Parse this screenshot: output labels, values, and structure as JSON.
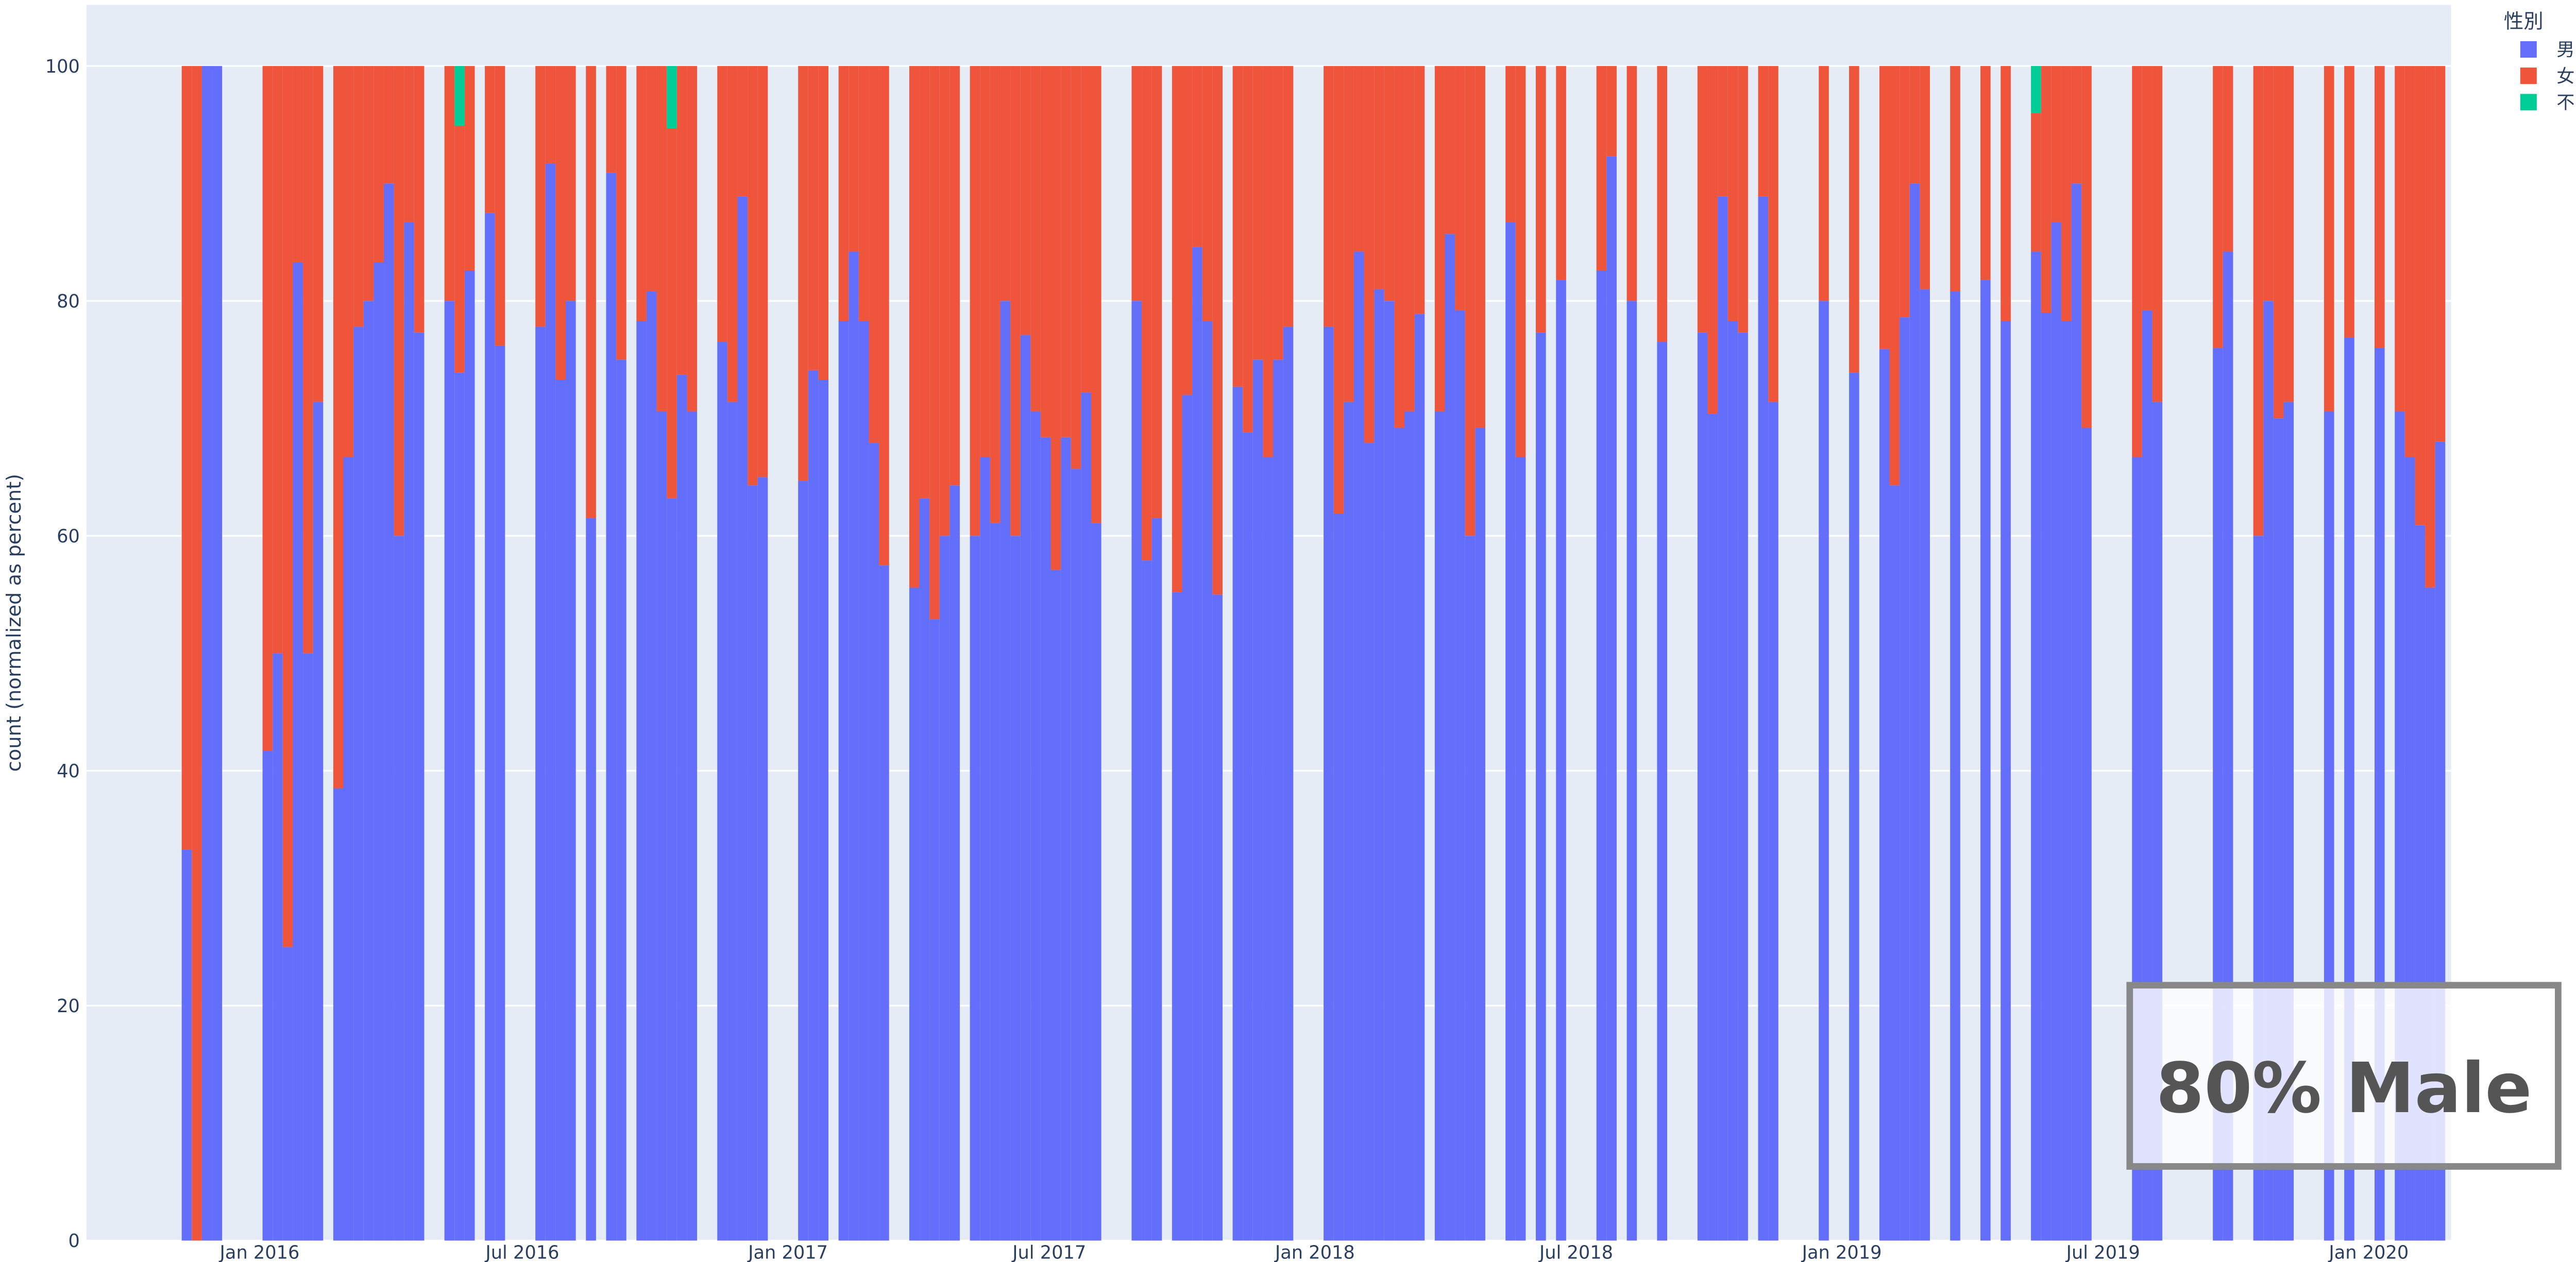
{
  "chart_data": {
    "type": "bar",
    "barmode": "stack",
    "y_label": "count (normalized as percent)",
    "legend_title": "性別",
    "annotation": "80% Male",
    "x": [
      "2015-11-08",
      "2015-11-15",
      "2015-11-22",
      "2015-11-29",
      "2016-01-03",
      "2016-01-10",
      "2016-01-17",
      "2016-01-24",
      "2016-01-31",
      "2016-02-07",
      "2016-02-21",
      "2016-02-28",
      "2016-03-06",
      "2016-03-13",
      "2016-03-20",
      "2016-03-27",
      "2016-04-03",
      "2016-04-10",
      "2016-04-17",
      "2016-05-08",
      "2016-05-15",
      "2016-05-22",
      "2016-06-05",
      "2016-06-12",
      "2016-07-10",
      "2016-07-17",
      "2016-07-24",
      "2016-07-31",
      "2016-08-14",
      "2016-08-28",
      "2016-09-04",
      "2016-09-18",
      "2016-09-25",
      "2016-10-02",
      "2016-10-09",
      "2016-10-16",
      "2016-10-23",
      "2016-11-13",
      "2016-11-20",
      "2016-11-27",
      "2016-12-04",
      "2016-12-11",
      "2017-01-08",
      "2017-01-15",
      "2017-01-22",
      "2017-02-05",
      "2017-02-12",
      "2017-02-19",
      "2017-02-26",
      "2017-03-05",
      "2017-03-26",
      "2017-04-02",
      "2017-04-09",
      "2017-04-16",
      "2017-04-23",
      "2017-05-07",
      "2017-05-14",
      "2017-05-21",
      "2017-05-28",
      "2017-06-04",
      "2017-06-11",
      "2017-06-18",
      "2017-06-25",
      "2017-07-02",
      "2017-07-09",
      "2017-07-16",
      "2017-07-23",
      "2017-07-30",
      "2017-08-27",
      "2017-09-03",
      "2017-09-10",
      "2017-09-24",
      "2017-10-01",
      "2017-10-08",
      "2017-10-15",
      "2017-10-22",
      "2017-11-05",
      "2017-11-12",
      "2017-11-19",
      "2017-11-26",
      "2017-12-03",
      "2017-12-10",
      "2018-01-07",
      "2018-01-14",
      "2018-01-21",
      "2018-01-28",
      "2018-02-04",
      "2018-02-11",
      "2018-02-18",
      "2018-02-25",
      "2018-03-04",
      "2018-03-11",
      "2018-03-25",
      "2018-04-01",
      "2018-04-08",
      "2018-04-15",
      "2018-04-22",
      "2018-05-13",
      "2018-05-20",
      "2018-06-03",
      "2018-06-17",
      "2018-07-15",
      "2018-07-22",
      "2018-08-05",
      "2018-08-26",
      "2018-09-23",
      "2018-09-30",
      "2018-10-07",
      "2018-10-14",
      "2018-10-21",
      "2018-11-04",
      "2018-11-11",
      "2018-12-16",
      "2019-01-06",
      "2019-01-27",
      "2019-02-03",
      "2019-02-10",
      "2019-02-17",
      "2019-02-24",
      "2019-03-17",
      "2019-04-07",
      "2019-04-21",
      "2019-05-12",
      "2019-05-19",
      "2019-05-26",
      "2019-06-02",
      "2019-06-09",
      "2019-06-16",
      "2019-07-21",
      "2019-07-28",
      "2019-08-04",
      "2019-09-15",
      "2019-09-22",
      "2019-10-13",
      "2019-10-20",
      "2019-10-27",
      "2019-11-03",
      "2019-12-01",
      "2019-12-15",
      "2020-01-05",
      "2020-01-19",
      "2020-01-26",
      "2020-02-02",
      "2020-02-09",
      "2020-02-16"
    ],
    "series": [
      {
        "name": "男",
        "color": "#636efa",
        "values": [
          33.3,
          0,
          100,
          100,
          41.7,
          50,
          25,
          83.3,
          50,
          71.4,
          38.5,
          66.7,
          77.8,
          80,
          83.3,
          90,
          60,
          86.7,
          77.3,
          80,
          73.9,
          82.6,
          87.5,
          76.2,
          77.8,
          91.7,
          73.3,
          80,
          61.5,
          90.9,
          75,
          78.3,
          80.8,
          70.6,
          63.2,
          73.7,
          70.6,
          76.5,
          71.4,
          88.9,
          64.3,
          65,
          64.7,
          74.1,
          73.3,
          78.3,
          84.2,
          78.3,
          67.9,
          57.5,
          55.6,
          63.2,
          52.9,
          60,
          64.3,
          60,
          66.7,
          61.1,
          80,
          60,
          77.1,
          70.6,
          68.4,
          57.1,
          68.4,
          65.7,
          72.2,
          61.1,
          80,
          57.9,
          61.5,
          55.2,
          72,
          84.6,
          78.3,
          55,
          72.7,
          68.8,
          75,
          66.7,
          75,
          77.8,
          77.8,
          61.9,
          71.4,
          84.2,
          67.9,
          81,
          80,
          69.2,
          70.6,
          78.9,
          70.6,
          85.7,
          79.2,
          60,
          69.2,
          86.7,
          66.7,
          77.3,
          81.8,
          82.6,
          92.3,
          80,
          76.5,
          77.3,
          70.4,
          88.9,
          78.3,
          77.3,
          88.9,
          71.4,
          80,
          73.9,
          75.9,
          64.3,
          78.6,
          90,
          81,
          80.8,
          81.8,
          78.3,
          84.2,
          79,
          86.7,
          78.3,
          90,
          69.2,
          66.7,
          79.2,
          71.4,
          76,
          84.2,
          60,
          80,
          70,
          71.4,
          70.6,
          76.9,
          76,
          70.6,
          66.7,
          60.9,
          55.6,
          68
        ]
      },
      {
        "name": "女",
        "color": "#ef553b",
        "values": [
          66.7,
          100,
          0,
          0,
          58.3,
          50,
          75,
          16.7,
          50,
          28.6,
          61.5,
          33.3,
          22.2,
          20,
          16.7,
          10,
          40,
          13.3,
          22.7,
          20,
          21,
          17.4,
          12.5,
          23.8,
          22.2,
          8.3,
          26.7,
          20,
          38.5,
          9.1,
          25,
          21.7,
          19.2,
          29.4,
          31.5,
          26.3,
          29.4,
          23.5,
          28.6,
          11.1,
          35.7,
          35,
          35.3,
          25.9,
          26.7,
          21.7,
          15.8,
          21.7,
          32.1,
          42.5,
          44.4,
          36.8,
          47.1,
          40,
          35.7,
          40,
          33.3,
          38.9,
          20,
          40,
          22.9,
          29.4,
          31.6,
          42.9,
          31.6,
          34.3,
          27.8,
          38.9,
          20,
          42.1,
          38.5,
          44.8,
          28,
          15.4,
          21.7,
          45,
          27.3,
          31.2,
          25,
          33.3,
          25,
          22.2,
          22.2,
          38.1,
          28.6,
          15.8,
          32.1,
          19,
          20,
          30.8,
          29.4,
          21.1,
          29.4,
          14.3,
          20.8,
          40,
          30.8,
          13.3,
          33.3,
          22.7,
          18.2,
          17.4,
          7.7,
          20,
          23.5,
          22.7,
          29.6,
          11.1,
          21.7,
          22.7,
          11.1,
          28.6,
          20,
          26.1,
          24.1,
          35.7,
          21.4,
          10,
          19,
          19.2,
          18.2,
          21.7,
          11.8,
          21,
          13.3,
          21.7,
          10,
          30.8,
          33.3,
          20.8,
          28.6,
          24,
          15.8,
          40,
          20,
          30,
          28.6,
          29.4,
          23.1,
          24,
          29.4,
          33.3,
          39.1,
          44.4,
          32
        ]
      },
      {
        "name": "不明",
        "color": "#00cc96",
        "values": [
          null,
          null,
          null,
          null,
          null,
          null,
          null,
          null,
          null,
          null,
          null,
          null,
          null,
          null,
          null,
          null,
          null,
          null,
          null,
          null,
          5.1,
          null,
          null,
          null,
          null,
          null,
          null,
          null,
          null,
          null,
          null,
          null,
          null,
          null,
          5.3,
          null,
          null,
          null,
          null,
          null,
          null,
          null,
          null,
          null,
          null,
          null,
          null,
          null,
          null,
          null,
          null,
          null,
          null,
          null,
          null,
          null,
          null,
          null,
          null,
          null,
          null,
          null,
          null,
          null,
          null,
          null,
          null,
          null,
          null,
          null,
          null,
          null,
          null,
          null,
          null,
          null,
          null,
          null,
          null,
          null,
          null,
          null,
          null,
          null,
          null,
          null,
          null,
          null,
          null,
          null,
          null,
          null,
          null,
          null,
          null,
          null,
          null,
          null,
          null,
          null,
          null,
          null,
          null,
          null,
          null,
          null,
          null,
          null,
          null,
          null,
          null,
          null,
          null,
          null,
          null,
          null,
          null,
          null,
          null,
          null,
          null,
          null,
          4,
          null,
          null,
          null,
          null,
          null,
          null,
          null,
          null,
          null,
          null,
          null,
          null,
          null,
          null,
          null,
          null,
          null,
          null,
          null,
          null,
          null,
          null
        ]
      }
    ],
    "bar_days": 7,
    "xlim": [
      "2015-09-03",
      "2020-02-27"
    ],
    "xticks": [
      {
        "value": "2016-01-01",
        "label": "Jan 2016"
      },
      {
        "value": "2016-07-01",
        "label": "Jul 2016"
      },
      {
        "value": "2017-01-01",
        "label": "Jan 2017"
      },
      {
        "value": "2017-07-01",
        "label": "Jul 2017"
      },
      {
        "value": "2018-01-01",
        "label": "Jan 2018"
      },
      {
        "value": "2018-07-01",
        "label": "Jul 2018"
      },
      {
        "value": "2019-01-01",
        "label": "Jan 2019"
      },
      {
        "value": "2019-07-01",
        "label": "Jul 2019"
      },
      {
        "value": "2020-01-01",
        "label": "Jan 2020"
      }
    ],
    "ylim": [
      0,
      105.2
    ],
    "yticks": [
      0,
      20,
      40,
      60,
      80,
      100
    ],
    "grid": true
  }
}
